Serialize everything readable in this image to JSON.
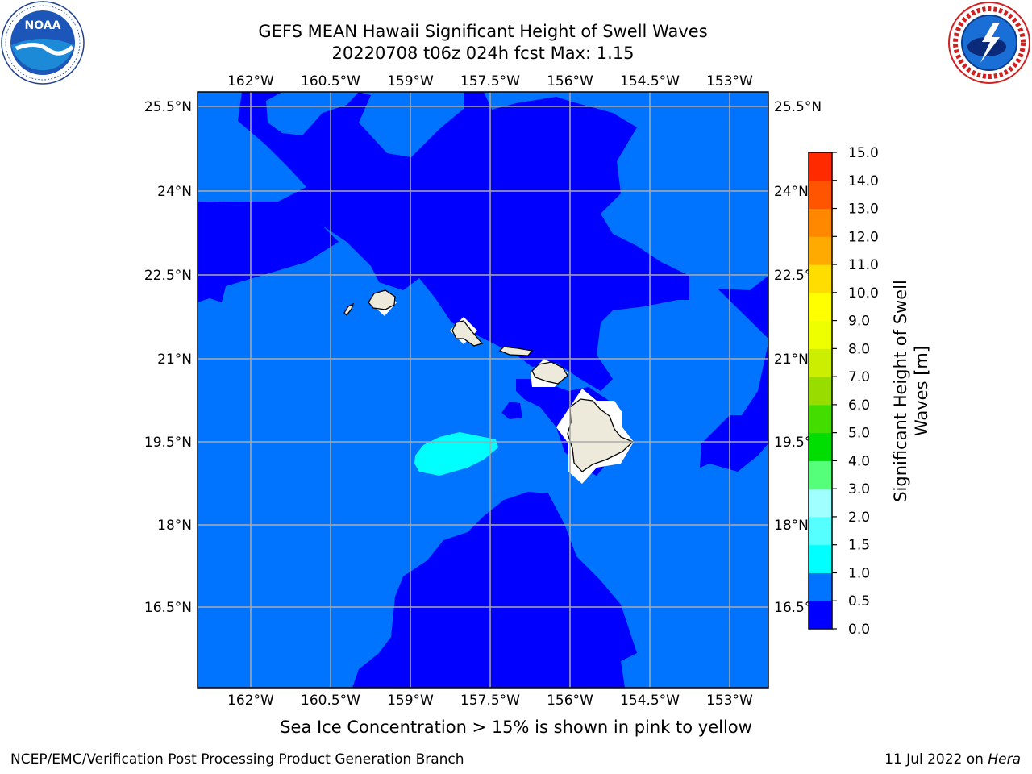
{
  "title_line1": "GEFS MEAN Hawaii Significant Height of Swell Waves",
  "title_line2": "20220708 t06z 024h fcst   Max: 1.15",
  "longitude_ticks": [
    "162°W",
    "160.5°W",
    "159°W",
    "157.5°W",
    "156°W",
    "154.5°W",
    "153°W"
  ],
  "latitude_ticks": [
    "25.5°N",
    "24°N",
    "22.5°N",
    "21°N",
    "19.5°N",
    "18°N",
    "16.5°N"
  ],
  "colorbar": {
    "label_line1": "Significant Height of Swell",
    "label_line2": "Waves [m]",
    "ticks": [
      "0.0",
      "0.5",
      "1.0",
      "1.5",
      "2.0",
      "3.0",
      "4.0",
      "5.0",
      "6.0",
      "7.0",
      "8.0",
      "9.0",
      "10.0",
      "11.0",
      "12.0",
      "13.0",
      "14.0",
      "15.0"
    ],
    "colors": [
      "#0000ff",
      "#0073ff",
      "#00ffff",
      "#55ffff",
      "#a0ffff",
      "#55ff7a",
      "#00dd00",
      "#44dd00",
      "#99dd00",
      "#ccee00",
      "#eeff00",
      "#ffff00",
      "#ffdd00",
      "#ffaa00",
      "#ff8800",
      "#ff5500",
      "#ff2a00",
      "#ff0000"
    ]
  },
  "sea_ice_note": "Sea Ice Concentration > 15% is shown in pink to yellow",
  "footer": {
    "credit": "NCEP/EMC/Verification Post Processing Product Generation Branch",
    "date": "11 Jul 2022 on ",
    "machine": "Hera"
  },
  "colors": {
    "ocean_low": "#0000ff",
    "ocean_mid": "#0073ff",
    "ocean_high": "#00ffff",
    "land": "#eeeadb",
    "grid": "#aaaaaa"
  }
}
